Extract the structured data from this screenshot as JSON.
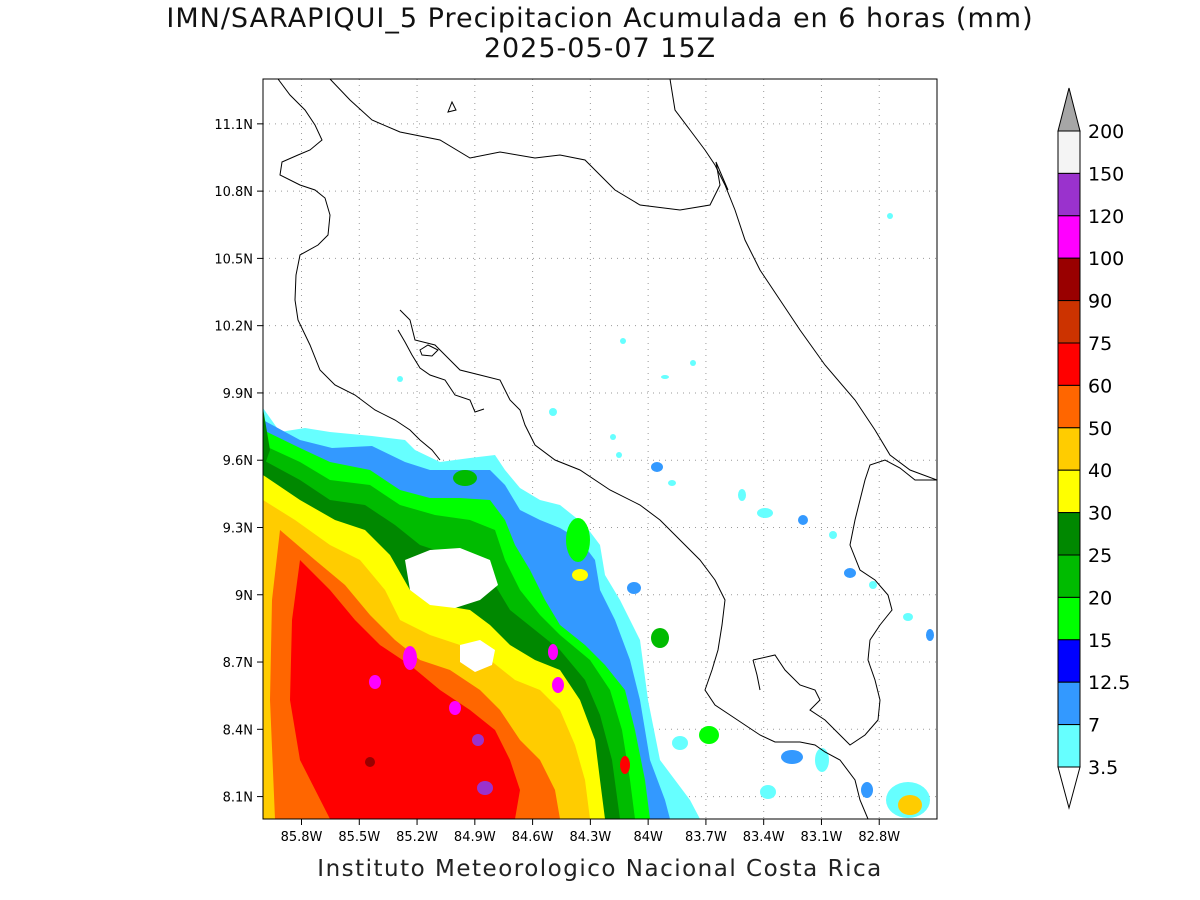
{
  "title": {
    "line1": "IMN/SARAPIQUI_5 Precipitacion Acumulada en 6 horas (mm)",
    "line2": "2025-05-07 15Z"
  },
  "map": {
    "lon_range": [
      -86.0,
      -82.5
    ],
    "lat_range": [
      8.0,
      11.3
    ],
    "lon_ticks": [
      "85.8W",
      "85.5W",
      "85.2W",
      "84.9W",
      "84.6W",
      "84.3W",
      "84W",
      "83.7W",
      "83.4W",
      "83.1W",
      "82.8W"
    ],
    "lon_tick_values": [
      -85.8,
      -85.5,
      -85.2,
      -84.9,
      -84.6,
      -84.3,
      -84.0,
      -83.7,
      -83.4,
      -83.1,
      -82.8
    ],
    "lat_ticks": [
      "11.1N",
      "10.8N",
      "10.5N",
      "10.2N",
      "9.9N",
      "9.6N",
      "9.3N",
      "9N",
      "8.7N",
      "8.4N",
      "8.1N"
    ],
    "lat_tick_values": [
      11.1,
      10.8,
      10.5,
      10.2,
      9.9,
      9.6,
      9.3,
      9.0,
      8.7,
      8.4,
      8.1
    ],
    "grid": true
  },
  "legend": {
    "labels": [
      "200",
      "150",
      "120",
      "100",
      "90",
      "75",
      "60",
      "50",
      "40",
      "30",
      "25",
      "20",
      "15",
      "12.5",
      "7",
      "3.5"
    ],
    "colors": [
      "#a6a6a6",
      "#f4f4f4",
      "#9a32cd",
      "#ff00ff",
      "#990000",
      "#cc3300",
      "#ff0000",
      "#ff6600",
      "#ffcc00",
      "#ffff00",
      "#008800",
      "#00bb00",
      "#00ff00",
      "#0000ff",
      "#3399ff",
      "#66ffff",
      "#ffffff"
    ]
  },
  "credit": "Instituto Meteorologico Nacional Costa Rica"
}
